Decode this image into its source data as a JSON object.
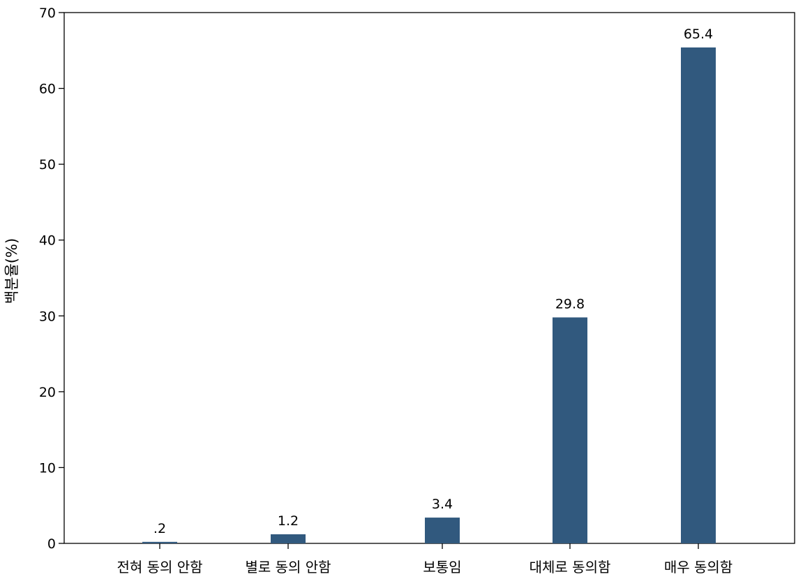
{
  "chart_data": {
    "type": "bar",
    "ylabel": "백분율(%)",
    "xlabel": "",
    "categories": [
      "전혀 동의 안함",
      "별로 동의 안함",
      "보통임",
      "대체로 동의함",
      "매우 동의함"
    ],
    "values": [
      0.2,
      1.2,
      3.4,
      29.8,
      65.4
    ],
    "data_labels": [
      ".2",
      "1.2",
      "3.4",
      "29.8",
      "65.4"
    ],
    "ylim": [
      0,
      70
    ],
    "yticks": [
      0,
      10,
      20,
      30,
      40,
      50,
      60,
      70
    ],
    "bar_color": "#31597e",
    "grid": false,
    "legend": "none"
  }
}
